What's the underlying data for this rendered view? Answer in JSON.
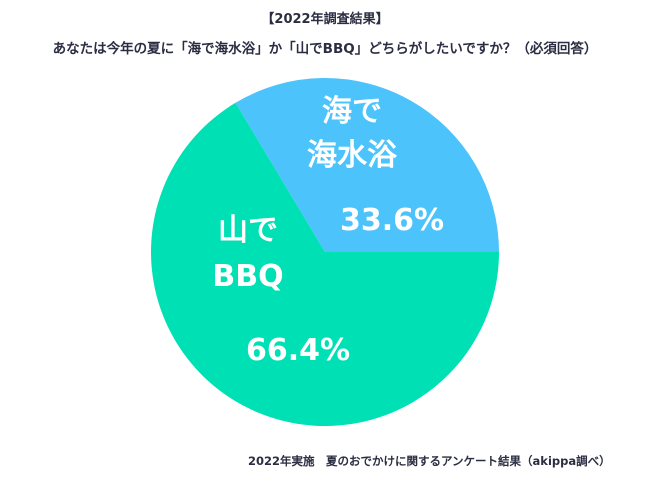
{
  "chart_data": {
    "type": "pie",
    "title": "【2022年調査結果】",
    "subtitle": "あなたは今年の夏に「海で海水浴」か「山でBBQ」どちらがしたいですか？（必須回答）",
    "slices": [
      {
        "label_lines": [
          "海で",
          "海水浴"
        ],
        "value": 33.6,
        "value_label": "33.6%",
        "color": "#4dc3fb"
      },
      {
        "label_lines": [
          "山で",
          "BBQ"
        ],
        "value": 66.4,
        "value_label": "66.4%",
        "color": "#00e0b5"
      }
    ],
    "start": "3 o'clock, counterclockwise",
    "note": "2022年実施　夏のおでかけに関するアンケート結果（akippa調べ）"
  }
}
